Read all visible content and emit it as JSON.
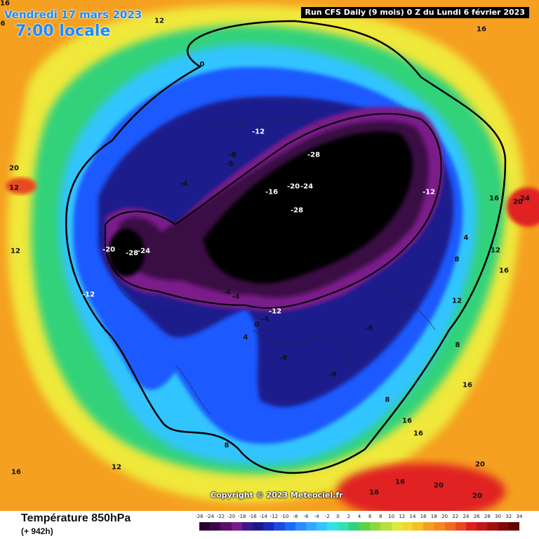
{
  "header": {
    "valid_date": "Vendredi 17 mars 2023",
    "local_time": "7:00 locale",
    "run_info": "Run CFS Daily (9 mois) 0 Z du Lundi 6 février 2023"
  },
  "map": {
    "copyright": "Copyright © 2023 Meteociel.fr",
    "isotherm_labels": [
      "16",
      "6",
      "12",
      "16",
      "20",
      "12",
      "-12",
      "-8",
      "-8",
      "-4",
      "-20",
      "-28",
      "-24",
      "-12",
      "0",
      "-28",
      "-16",
      "-20",
      "-24",
      "-28",
      "-12",
      "16",
      "24",
      "20",
      "4",
      "8",
      "12",
      "12",
      "-4",
      "-4",
      "-8",
      "-12",
      "-4",
      "0",
      "4",
      "-8",
      "8",
      "-8",
      "16",
      "8",
      "16",
      "16",
      "8",
      "12",
      "16",
      "20",
      "16",
      "20",
      "16",
      "20",
      "12",
      "16"
    ],
    "colors": {
      "black_core": "#000000",
      "deep_purple": "#3b0a45",
      "purple": "#7a1a8a",
      "navy": "#1a1a8c",
      "blue": "#1a5aff",
      "cyan": "#33c4ff",
      "green": "#33d27a",
      "yellow": "#f0e83a",
      "orange": "#f5a020",
      "red": "#e02020"
    }
  },
  "footer": {
    "parameter": "Température 850hPa",
    "forecast_hour": "(+ 942h)"
  },
  "legend": {
    "labels": [
      "-26",
      "-24",
      "-22",
      "-20",
      "-18",
      "-16",
      "-14",
      "-12",
      "-10",
      "-8",
      "-6",
      "-4",
      "-2",
      "0",
      "2",
      "4",
      "6",
      "8",
      "10",
      "12",
      "14",
      "16",
      "18",
      "20",
      "22",
      "24",
      "26",
      "28",
      "30",
      "32",
      "34"
    ],
    "colors": [
      "#2a0030",
      "#3b0a45",
      "#5a1066",
      "#7a1a8a",
      "#3a1a8c",
      "#1a1a8c",
      "#1a2aba",
      "#1a4adf",
      "#1a6aff",
      "#2a8cff",
      "#33a8ff",
      "#33c4ff",
      "#33e0e8",
      "#33e0b0",
      "#33d27a",
      "#5ad24a",
      "#8ad83a",
      "#b8e03a",
      "#e0e83a",
      "#f0d82a",
      "#f5c020",
      "#f5a020",
      "#f58820",
      "#f06a20",
      "#e84a20",
      "#e02020",
      "#c01818",
      "#a01010",
      "#800808",
      "#600404"
    ]
  }
}
